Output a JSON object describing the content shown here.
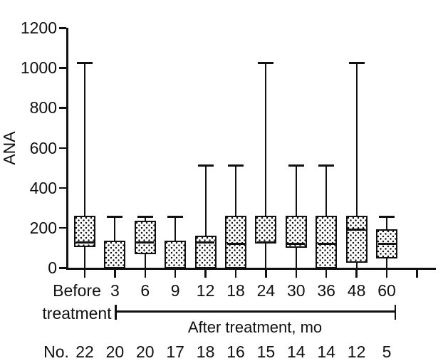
{
  "figure": {
    "background": "#ffffff",
    "ink_color": "#111111"
  },
  "chart_data": {
    "type": "boxplot",
    "title": "",
    "ylabel": "ANA",
    "ylim": [
      0,
      1200
    ],
    "yticks": [
      0,
      200,
      400,
      600,
      800,
      1000,
      1200
    ],
    "grid": false,
    "legend": null,
    "first_category_line1": "Before",
    "first_category_line2": "treatment",
    "group_bracket_label": "After treatment, mo",
    "n_row_label": "No.",
    "categories": [
      "Before treatment",
      "3",
      "6",
      "9",
      "12",
      "18",
      "24",
      "30",
      "36",
      "48",
      "60"
    ],
    "n_values": [
      22,
      20,
      20,
      17,
      18,
      16,
      15,
      14,
      14,
      12,
      5
    ],
    "series": [
      {
        "category": "Before treatment",
        "n": 22,
        "whisker_low": 0,
        "q1": 110,
        "median": 128,
        "q3": 256,
        "whisker_high": 1024
      },
      {
        "category": "3",
        "n": 20,
        "whisker_low": 0,
        "q1": 0,
        "median": null,
        "q3": 130,
        "whisker_high": 256
      },
      {
        "category": "6",
        "n": 20,
        "whisker_low": 0,
        "q1": 72,
        "median": 128,
        "q3": 230,
        "whisker_high": 256
      },
      {
        "category": "9",
        "n": 17,
        "whisker_low": 0,
        "q1": 0,
        "median": null,
        "q3": 130,
        "whisker_high": 256
      },
      {
        "category": "12",
        "n": 18,
        "whisker_low": 0,
        "q1": 0,
        "median": 128,
        "q3": 155,
        "whisker_high": 512
      },
      {
        "category": "18",
        "n": 16,
        "whisker_low": 0,
        "q1": 0,
        "median": 120,
        "q3": 256,
        "whisker_high": 512
      },
      {
        "category": "24",
        "n": 15,
        "whisker_low": 0,
        "q1": 128,
        "median": 128,
        "q3": 256,
        "whisker_high": 1024
      },
      {
        "category": "30",
        "n": 14,
        "whisker_low": 0,
        "q1": 105,
        "median": 120,
        "q3": 256,
        "whisker_high": 512
      },
      {
        "category": "36",
        "n": 14,
        "whisker_low": 0,
        "q1": 0,
        "median": 120,
        "q3": 256,
        "whisker_high": 512
      },
      {
        "category": "48",
        "n": 12,
        "whisker_low": 0,
        "q1": 32,
        "median": 190,
        "q3": 256,
        "whisker_high": 1024
      },
      {
        "category": "60",
        "n": 5,
        "whisker_low": 0,
        "q1": 52,
        "median": 120,
        "q3": 190,
        "whisker_high": 256
      }
    ]
  }
}
